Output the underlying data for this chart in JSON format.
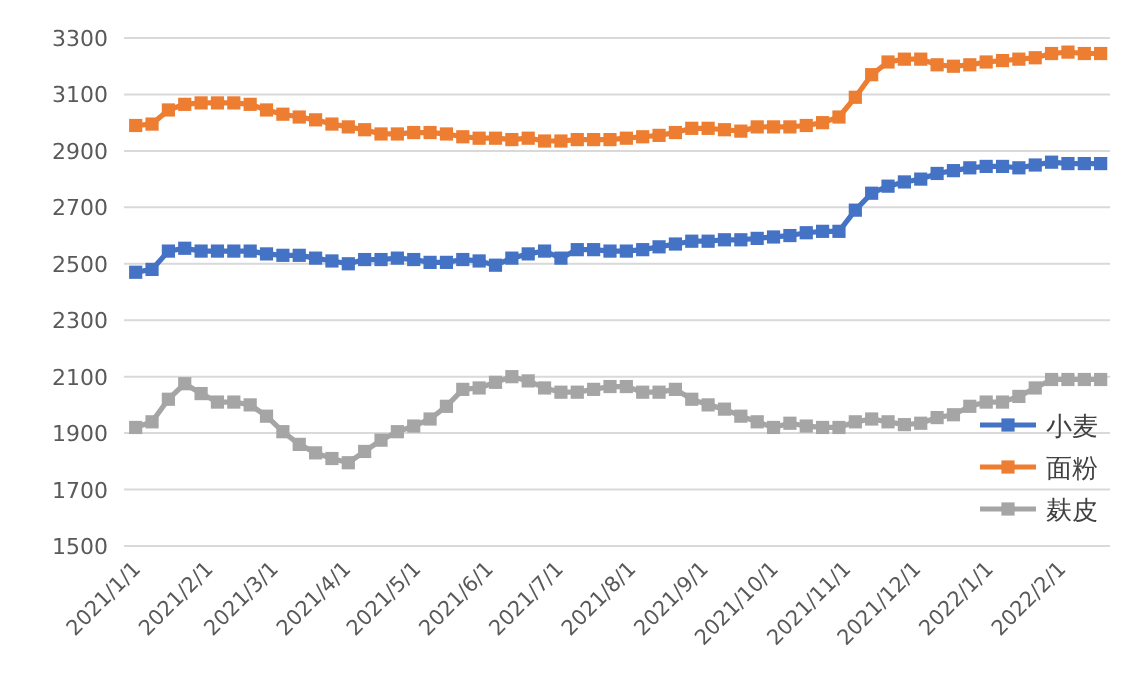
{
  "chart_data": {
    "type": "line",
    "x": [
      "2021-01-01",
      "2021-01-08",
      "2021-01-15",
      "2021-01-22",
      "2021-01-29",
      "2021-02-05",
      "2021-02-12",
      "2021-02-19",
      "2021-02-26",
      "2021-03-05",
      "2021-03-12",
      "2021-03-19",
      "2021-03-26",
      "2021-04-02",
      "2021-04-09",
      "2021-04-16",
      "2021-04-23",
      "2021-04-30",
      "2021-05-07",
      "2021-05-14",
      "2021-05-21",
      "2021-05-28",
      "2021-06-04",
      "2021-06-11",
      "2021-06-18",
      "2021-06-25",
      "2021-07-02",
      "2021-07-09",
      "2021-07-16",
      "2021-07-23",
      "2021-07-30",
      "2021-08-06",
      "2021-08-13",
      "2021-08-20",
      "2021-08-27",
      "2021-09-03",
      "2021-09-10",
      "2021-09-17",
      "2021-09-24",
      "2021-10-01",
      "2021-10-08",
      "2021-10-15",
      "2021-10-22",
      "2021-10-29",
      "2021-11-05",
      "2021-11-12",
      "2021-11-19",
      "2021-11-26",
      "2021-12-03",
      "2021-12-10",
      "2021-12-17",
      "2021-12-24",
      "2021-12-31",
      "2022-01-07",
      "2022-01-14",
      "2022-01-21",
      "2022-01-28",
      "2022-02-04",
      "2022-02-11",
      "2022-02-18"
    ],
    "series": [
      {
        "name": "小麦",
        "color": "#4472c4",
        "values": [
          2470,
          2480,
          2545,
          2555,
          2545,
          2545,
          2545,
          2545,
          2535,
          2530,
          2530,
          2520,
          2510,
          2500,
          2515,
          2515,
          2520,
          2515,
          2505,
          2505,
          2515,
          2510,
          2495,
          2520,
          2535,
          2545,
          2520,
          2550,
          2550,
          2545,
          2545,
          2550,
          2560,
          2570,
          2580,
          2580,
          2585,
          2585,
          2590,
          2595,
          2600,
          2610,
          2615,
          2615,
          2690,
          2750,
          2775,
          2790,
          2800,
          2820,
          2830,
          2840,
          2845,
          2845,
          2840,
          2850,
          2860,
          2855,
          2855,
          2855
        ]
      },
      {
        "name": "面粉",
        "color": "#ed7d31",
        "values": [
          2990,
          2995,
          3045,
          3065,
          3070,
          3070,
          3070,
          3065,
          3045,
          3030,
          3020,
          3010,
          2995,
          2985,
          2975,
          2960,
          2960,
          2965,
          2965,
          2960,
          2950,
          2945,
          2945,
          2940,
          2945,
          2935,
          2935,
          2940,
          2940,
          2940,
          2945,
          2950,
          2955,
          2965,
          2980,
          2980,
          2975,
          2970,
          2985,
          2985,
          2985,
          2990,
          3000,
          3020,
          3090,
          3170,
          3215,
          3225,
          3225,
          3205,
          3200,
          3205,
          3215,
          3220,
          3225,
          3230,
          3245,
          3250,
          3245,
          3245
        ]
      },
      {
        "name": "麸皮",
        "color": "#a5a5a5",
        "values": [
          1920,
          1940,
          2020,
          2075,
          2040,
          2010,
          2010,
          2000,
          1960,
          1905,
          1860,
          1830,
          1810,
          1795,
          1835,
          1875,
          1905,
          1925,
          1950,
          1995,
          2055,
          2060,
          2080,
          2100,
          2085,
          2060,
          2045,
          2045,
          2055,
          2065,
          2065,
          2045,
          2045,
          2055,
          2020,
          2000,
          1985,
          1960,
          1940,
          1920,
          1935,
          1925,
          1920,
          1920,
          1940,
          1950,
          1940,
          1930,
          1935,
          1955,
          1965,
          1995,
          2010,
          2010,
          2030,
          2060,
          2090,
          2090,
          2090,
          2090
        ]
      }
    ],
    "xlim": [
      "2020-12-27",
      "2022-02-22"
    ],
    "xticks": [
      {
        "value": "2021-01-01",
        "label": "2021/1/1"
      },
      {
        "value": "2021-02-01",
        "label": "2021/2/1"
      },
      {
        "value": "2021-03-01",
        "label": "2021/3/1"
      },
      {
        "value": "2021-04-01",
        "label": "2021/4/1"
      },
      {
        "value": "2021-05-01",
        "label": "2021/5/1"
      },
      {
        "value": "2021-06-01",
        "label": "2021/6/1"
      },
      {
        "value": "2021-07-01",
        "label": "2021/7/1"
      },
      {
        "value": "2021-08-01",
        "label": "2021/8/1"
      },
      {
        "value": "2021-09-01",
        "label": "2021/9/1"
      },
      {
        "value": "2021-10-01",
        "label": "2021/10/1"
      },
      {
        "value": "2021-11-01",
        "label": "2021/11/1"
      },
      {
        "value": "2021-12-01",
        "label": "2021/12/1"
      },
      {
        "value": "2022-01-01",
        "label": "2022/1/1"
      },
      {
        "value": "2022-02-01",
        "label": "2022/2/1"
      }
    ],
    "ylim": [
      1500,
      3300
    ],
    "yticks": [
      1500,
      1700,
      1900,
      2100,
      2300,
      2500,
      2700,
      2900,
      3100,
      3300
    ],
    "grid": "y",
    "legend": "bottom right",
    "marker": "square",
    "line_style": "solid"
  }
}
